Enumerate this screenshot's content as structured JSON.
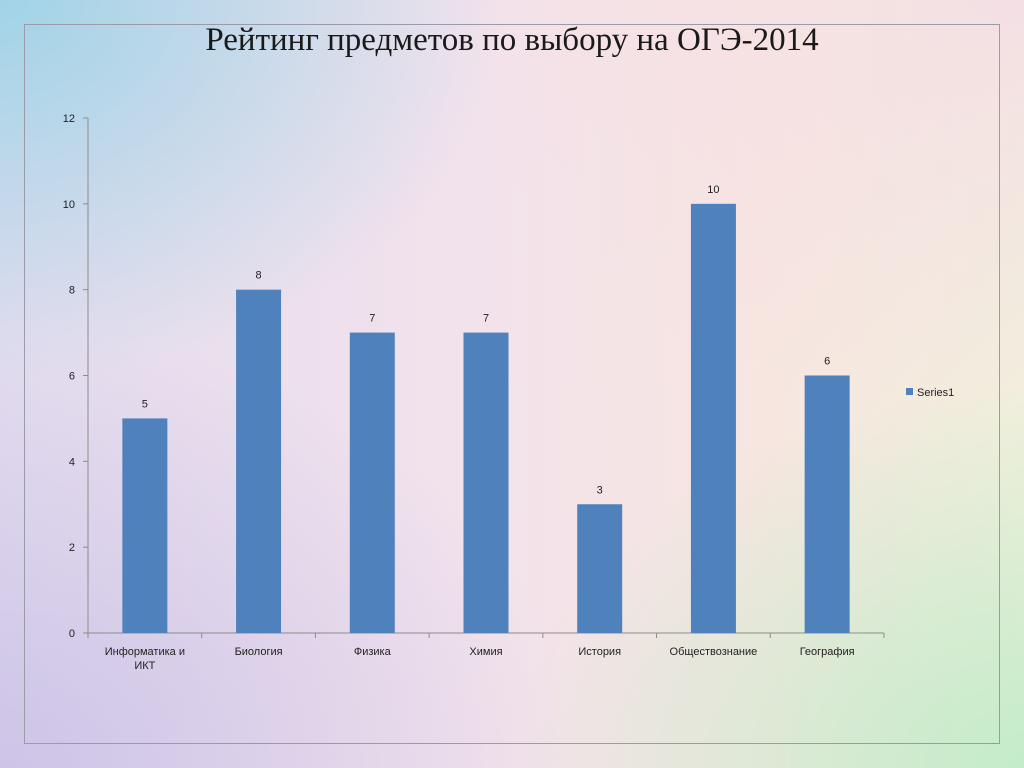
{
  "slide": {
    "title": "Рейтинг предметов по выбору на ОГЭ-2014"
  },
  "chart_data": {
    "type": "bar",
    "title": "",
    "xlabel": "",
    "ylabel": "",
    "categories": [
      [
        "Информатика и",
        "ИКТ"
      ],
      [
        "Биология"
      ],
      [
        "Физика"
      ],
      [
        "Химия"
      ],
      [
        "История"
      ],
      [
        "Обществознание"
      ],
      [
        "География"
      ]
    ],
    "series": [
      {
        "name": "Series1",
        "values": [
          5,
          8,
          7,
          7,
          3,
          10,
          6
        ],
        "color": "#4f81bd"
      }
    ],
    "ylim": [
      0,
      12
    ],
    "yticks": [
      0,
      2,
      4,
      6,
      8,
      10,
      12
    ],
    "grid": false,
    "data_labels": true,
    "legend_position": "right"
  }
}
